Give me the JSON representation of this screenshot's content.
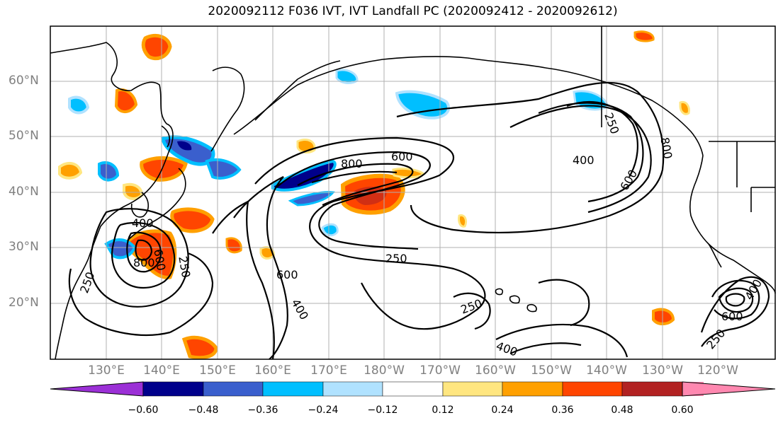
{
  "title": "2020092112 F036 IVT, IVT Landfall PC (2020092412 - 2020092612)",
  "lat_labels": [
    "60°N",
    "50°N",
    "40°N",
    "30°N",
    "20°N"
  ],
  "lon_labels": [
    "130°E",
    "140°E",
    "150°E",
    "160°E",
    "170°E",
    "180°W",
    "170°W",
    "160°W",
    "150°W",
    "140°W",
    "130°W",
    "120°W"
  ],
  "contour_labels": [
    "600",
    "800",
    "400",
    "800",
    "600",
    "250",
    "400",
    "800",
    "600",
    "250",
    "250",
    "600",
    "400",
    "250",
    "250",
    "400",
    "400",
    "600",
    "250"
  ],
  "colorbar": {
    "tick_labels": [
      "−0.60",
      "−0.48",
      "−0.36",
      "−0.24",
      "−0.12",
      "0.12",
      "0.24",
      "0.36",
      "0.48",
      "0.60"
    ],
    "colors": [
      "#9b30d6",
      "#00008b",
      "#3a5fcd",
      "#00bfff",
      "#b0e2ff",
      "#ffffff",
      "#ffe680",
      "#ffa000",
      "#ff4500",
      "#b22222",
      "#ff88b0"
    ]
  },
  "colors": {
    "land": "#000000",
    "contour": "#000000",
    "grid": "#b0b0b0"
  }
}
